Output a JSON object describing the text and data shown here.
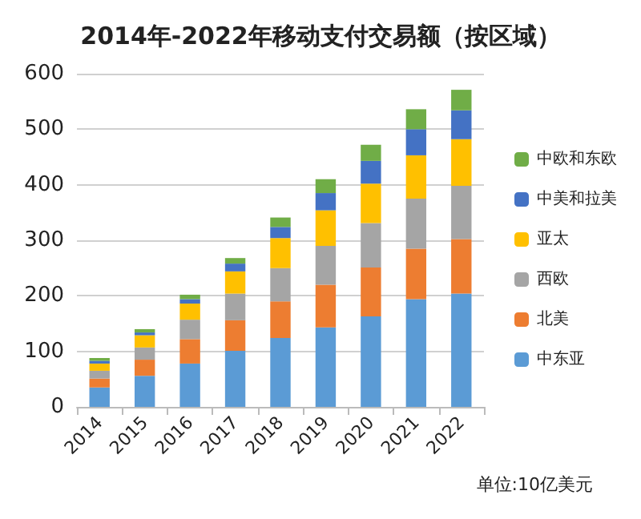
{
  "chart_data": {
    "type": "bar",
    "title": "2014年-2022年移动支付交易额（按区域）",
    "stacked": true,
    "categories": [
      "2014",
      "2015",
      "2016",
      "2017",
      "2018",
      "2019",
      "2020",
      "2021",
      "2022"
    ],
    "series": [
      {
        "name": "中东亚",
        "color": "#5b9bd5",
        "values": [
          35,
          56,
          78,
          101,
          124,
          143,
          163,
          194,
          204
        ]
      },
      {
        "name": "北美",
        "color": "#ed7d31",
        "values": [
          16,
          29,
          44,
          55,
          66,
          77,
          88,
          91,
          98
        ]
      },
      {
        "name": "西欧",
        "color": "#a5a5a5",
        "values": [
          14,
          22,
          35,
          48,
          60,
          70,
          80,
          90,
          96
        ]
      },
      {
        "name": "亚太",
        "color": "#ffc000",
        "values": [
          13,
          22,
          29,
          40,
          54,
          64,
          71,
          78,
          84
        ]
      },
      {
        "name": "中美和拉美",
        "color": "#4472c4",
        "values": [
          5,
          5,
          8,
          14,
          20,
          31,
          41,
          47,
          52
        ]
      },
      {
        "name": "中欧和东欧",
        "color": "#70ad47",
        "values": [
          5,
          6,
          8,
          10,
          17,
          25,
          29,
          36,
          37
        ]
      }
    ],
    "ylim": [
      0,
      600
    ],
    "yticks": [
      0,
      100,
      200,
      300,
      400,
      500,
      600
    ],
    "grid": "y",
    "legend": "right",
    "annotations": [
      "单位:10亿美元"
    ]
  }
}
